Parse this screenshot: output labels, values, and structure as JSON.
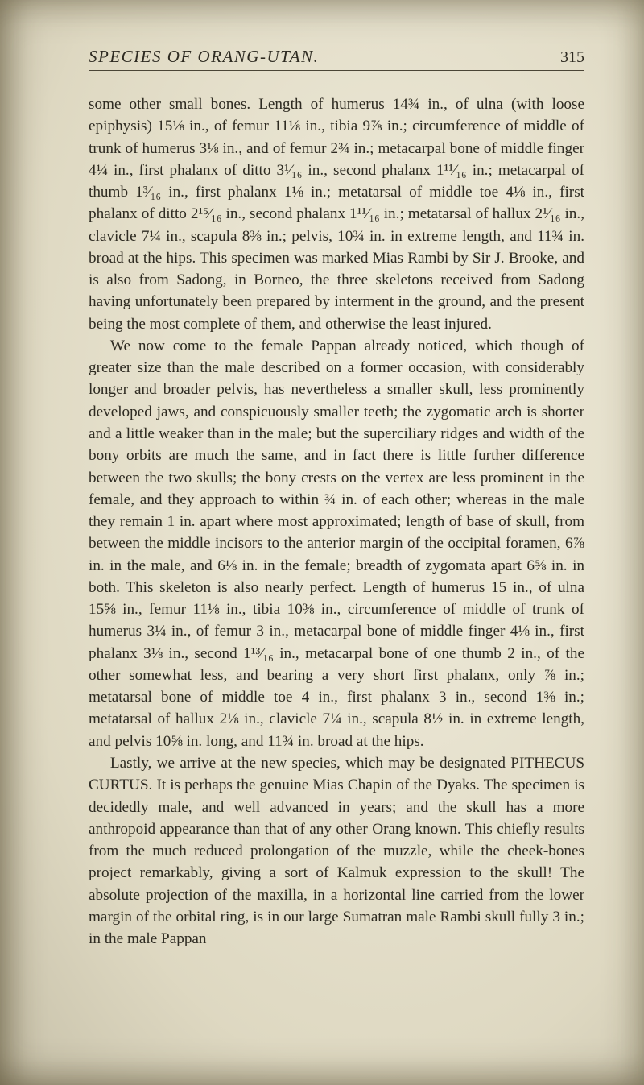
{
  "header": {
    "running_title": "SPECIES OF ORANG-UTAN.",
    "page_number": "315"
  },
  "paragraphs": [
    "some other small bones. Length of humerus 14¾ in., of ulna (with loose epiphysis) 15⅛ in., of femur 11⅛ in., tibia 9⅞ in.; circumference of middle of trunk of humerus 3⅛ in., and of femur 2¾ in.; metacarpal bone of middle finger 4¼ in., first phalanx of ditto 3¹⁄₁₆ in., second phalanx 1¹¹⁄₁₆ in.; metacarpal of thumb 1³⁄₁₆ in., first phalanx 1⅛ in.; metatarsal of middle toe 4⅛ in., first phalanx of ditto 2¹⁵⁄₁₆ in., second phalanx 1¹¹⁄₁₆ in.; metatarsal of hallux 2¹⁄₁₆ in., clavicle 7¼ in., scapula 8⅜ in.; pelvis, 10¾ in. in extreme length, and 11¾ in. broad at the hips. This specimen was marked Mias Rambi by Sir J. Brooke, and is also from Sadong, in Borneo, the three skeletons received from Sadong having unfortunately been prepared by interment in the ground, and the present being the most complete of them, and otherwise the least injured.",
    "We now come to the female Pappan already noticed, which though of greater size than the male described on a former occasion, with considerably longer and broader pelvis, has nevertheless a smaller skull, less prominently developed jaws, and conspicuously smaller teeth; the zygomatic arch is shorter and a little weaker than in the male; but the superciliary ridges and width of the bony orbits are much the same, and in fact there is little further difference between the two skulls; the bony crests on the vertex are less prominent in the female, and they approach to within ¾ in. of each other; whereas in the male they remain 1 in. apart where most approximated; length of base of skull, from between the middle incisors to the anterior margin of the occipital foramen, 6⅞ in. in the male, and 6⅛ in. in the female; breadth of zygomata apart 6⅝ in. in both. This skeleton is also nearly perfect. Length of humerus 15 in., of ulna 15⅝ in., femur 11⅛ in., tibia 10⅜ in., circumference of middle of trunk of humerus 3¼ in., of femur 3 in., metacarpal bone of middle finger 4⅛ in., first phalanx 3⅛ in., second 1¹³⁄₁₆ in., metacarpal bone of one thumb 2 in., of the other somewhat less, and bearing a very short first phalanx, only ⅞ in.; metatarsal bone of middle toe 4 in., first phalanx 3 in., second 1⅜ in.; metatarsal of hallux 2⅛ in., clavicle 7¼ in., scapula 8½ in. in extreme length, and pelvis 10⅝ in. long, and 11¾ in. broad at the hips.",
    "Lastly, we arrive at the new species, which may be designated PITHECUS CURTUS. It is perhaps the genuine Mias Chapin of the Dyaks. The specimen is decidedly male, and well advanced in years; and the skull has a more anthropoid appearance than that of any other Orang known. This chiefly results from the much reduced prolongation of the muzzle, while the cheek-bones project remarkably, giving a sort of Kalmuk expression to the skull! The absolute projection of the maxilla, in a horizontal line carried from the lower margin of the orbital ring, is in our large Sumatran male Rambi skull fully 3 in.; in the male Pappan"
  ]
}
